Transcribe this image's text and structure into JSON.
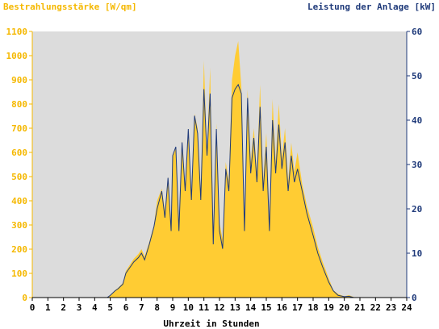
{
  "chart_data": {
    "type": "area",
    "title_left": "Bestrahlungsstärke [W/qm]",
    "title_right": "Leistung der Anlage [kW]",
    "xlabel": "Uhrzeit in Stunden",
    "xlim": [
      0,
      24
    ],
    "x_ticks": [
      "0",
      "1",
      "2",
      "3",
      "4",
      "5",
      "6",
      "7",
      "8",
      "9",
      "10",
      "11",
      "12",
      "13",
      "14",
      "15",
      "16",
      "17",
      "18",
      "19",
      "20",
      "21",
      "22",
      "23",
      "24"
    ],
    "y_left": {
      "lim": [
        0,
        1100
      ],
      "ticks": [
        "0",
        "100",
        "200",
        "300",
        "400",
        "500",
        "600",
        "700",
        "800",
        "900",
        "1000",
        "1100"
      ]
    },
    "y_right": {
      "lim": [
        0,
        60
      ],
      "ticks": [
        "0",
        "10",
        "20",
        "30",
        "40",
        "50",
        "60"
      ]
    },
    "grid": false,
    "colors": {
      "irradiance": "#FFCC33",
      "power": "#1F3A7A",
      "plot_bg": "#DCDCDC",
      "left_axis": "#F5B800",
      "right_axis": "#1F3A7A"
    },
    "series": [
      {
        "name": "Bestrahlungsstärke",
        "axis": "left",
        "x": [
          0,
          4.8,
          5.0,
          5.3,
          5.5,
          5.8,
          6.0,
          6.3,
          6.5,
          6.8,
          7.0,
          7.2,
          7.5,
          7.8,
          8.0,
          8.3,
          8.5,
          8.7,
          8.9,
          9.0,
          9.2,
          9.4,
          9.6,
          9.8,
          10.0,
          10.2,
          10.4,
          10.6,
          10.8,
          11.0,
          11.2,
          11.4,
          11.6,
          11.8,
          12.0,
          12.2,
          12.4,
          12.6,
          12.8,
          13.0,
          13.2,
          13.4,
          13.6,
          13.8,
          14.0,
          14.2,
          14.4,
          14.6,
          14.8,
          15.0,
          15.2,
          15.4,
          15.6,
          15.8,
          16.0,
          16.2,
          16.4,
          16.6,
          16.8,
          17.0,
          17.3,
          17.6,
          18.0,
          18.3,
          18.6,
          19.0,
          19.3,
          19.6,
          20.0,
          20.3,
          20.6,
          21.0,
          24.0
        ],
        "y": [
          0,
          0,
          10,
          30,
          40,
          60,
          110,
          140,
          160,
          180,
          200,
          170,
          230,
          300,
          400,
          450,
          360,
          500,
          300,
          580,
          620,
          300,
          650,
          460,
          700,
          420,
          760,
          700,
          420,
          980,
          600,
          950,
          260,
          720,
          310,
          240,
          560,
          480,
          900,
          1000,
          1060,
          870,
          300,
          860,
          560,
          700,
          520,
          880,
          480,
          680,
          330,
          820,
          560,
          800,
          580,
          700,
          480,
          640,
          520,
          600,
          470,
          380,
          290,
          210,
          150,
          80,
          30,
          15,
          5,
          10,
          2,
          0,
          0
        ]
      },
      {
        "name": "Leistung der Anlage",
        "axis": "right",
        "x": [
          0,
          4.8,
          5.0,
          5.3,
          5.5,
          5.8,
          6.0,
          6.3,
          6.5,
          6.8,
          7.0,
          7.2,
          7.5,
          7.8,
          8.0,
          8.3,
          8.5,
          8.7,
          8.9,
          9.0,
          9.2,
          9.4,
          9.6,
          9.8,
          10.0,
          10.2,
          10.4,
          10.6,
          10.8,
          11.0,
          11.2,
          11.4,
          11.6,
          11.8,
          12.0,
          12.2,
          12.4,
          12.6,
          12.8,
          13.0,
          13.2,
          13.4,
          13.6,
          13.8,
          14.0,
          14.2,
          14.4,
          14.6,
          14.8,
          15.0,
          15.2,
          15.4,
          15.6,
          15.8,
          16.0,
          16.2,
          16.4,
          16.6,
          16.8,
          17.0,
          17.3,
          17.6,
          18.0,
          18.3,
          18.6,
          19.0,
          19.3,
          19.6,
          20.0,
          20.3,
          20.6,
          21.0,
          24.0
        ],
        "y": [
          0,
          0,
          0.5,
          1.5,
          2,
          3,
          5.5,
          7,
          8,
          9,
          10,
          8.5,
          12,
          16,
          20,
          24,
          18,
          27,
          15,
          32,
          34,
          15,
          35,
          24,
          38,
          22,
          41,
          37,
          22,
          47,
          32,
          46,
          12,
          38,
          15,
          11,
          29,
          24,
          45,
          47,
          48,
          46,
          15,
          45,
          28,
          36,
          26,
          43,
          24,
          34,
          15,
          40,
          28,
          39,
          29,
          35,
          24,
          32,
          26,
          29,
          24,
          19,
          14,
          10,
          7,
          3.5,
          1.5,
          0.5,
          0.2,
          0.3,
          0,
          0,
          0
        ]
      }
    ]
  }
}
